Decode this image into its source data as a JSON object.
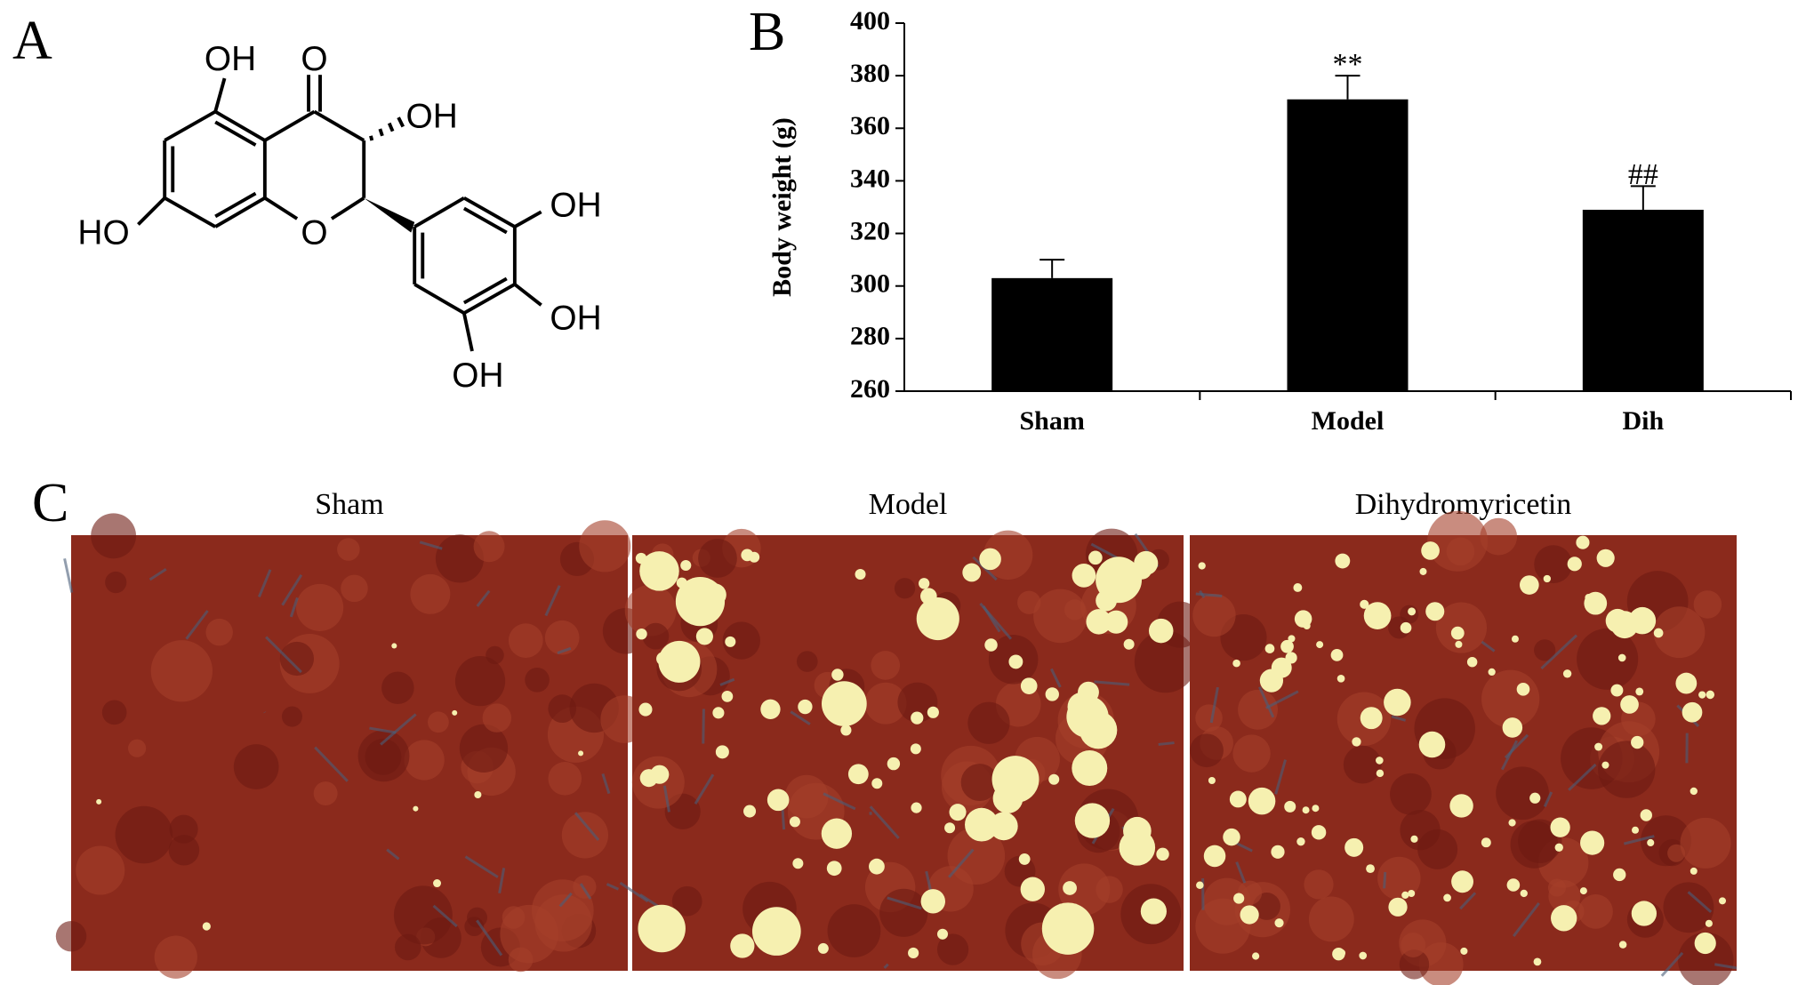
{
  "panel_a": {
    "label": "A",
    "groups": [
      "OH",
      "O",
      "OH",
      "HO",
      "O",
      "OH",
      "OH",
      "OH"
    ]
  },
  "chart_data": {
    "type": "bar",
    "panel_label": "B",
    "y_label": "Body weight (g)",
    "categories": [
      "Sham",
      "Model",
      "Dih"
    ],
    "values": [
      303,
      371,
      329
    ],
    "errors": [
      7,
      9,
      9
    ],
    "annotations": [
      {
        "index": 1,
        "text": "**"
      },
      {
        "index": 2,
        "text": "##"
      }
    ],
    "color": "#000000",
    "ylim": [
      260,
      400
    ],
    "yticks": [
      260,
      280,
      300,
      320,
      340,
      360,
      380,
      400
    ]
  },
  "panel_c": {
    "label": "C",
    "images": [
      "Sham",
      "Model",
      "Dihydromyricetin"
    ]
  }
}
